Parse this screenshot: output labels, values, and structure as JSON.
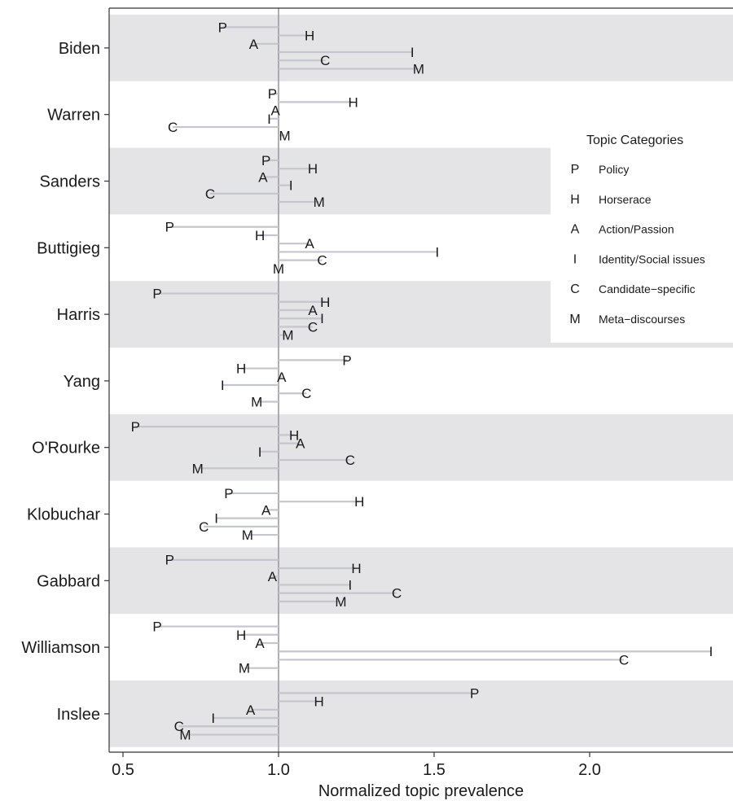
{
  "chart_data": {
    "type": "lollipop",
    "xlabel": "Normalized topic prevalence",
    "xlim": [
      0.45,
      2.45
    ],
    "xticks": [
      "0.5",
      "1.0",
      "1.5",
      "2.0"
    ],
    "baseline": 1.0,
    "shaded_bands": "alternating",
    "grid": false,
    "legend_position": "right",
    "legend": {
      "title": "Topic Categories",
      "items": [
        {
          "code": "P",
          "label": "Policy"
        },
        {
          "code": "H",
          "label": "Horserace"
        },
        {
          "code": "A",
          "label": "Action/Passion"
        },
        {
          "code": "I",
          "label": "Identity/Social issues"
        },
        {
          "code": "C",
          "label": "Candidate−specific"
        },
        {
          "code": "M",
          "label": "Meta−discourses"
        }
      ]
    },
    "series_order": [
      "P",
      "H",
      "A",
      "I",
      "C",
      "M"
    ],
    "candidates": [
      {
        "name": "Biden",
        "values": {
          "P": 0.82,
          "H": 1.1,
          "A": 0.92,
          "I": 1.43,
          "C": 1.15,
          "M": 1.45
        }
      },
      {
        "name": "Warren",
        "values": {
          "P": 0.98,
          "H": 1.24,
          "A": 0.99,
          "I": 0.97,
          "C": 0.66,
          "M": 1.02
        }
      },
      {
        "name": "Sanders",
        "values": {
          "P": 0.96,
          "H": 1.11,
          "A": 0.95,
          "I": 1.04,
          "C": 0.78,
          "M": 1.13
        }
      },
      {
        "name": "Buttigieg",
        "values": {
          "P": 0.65,
          "H": 0.94,
          "A": 1.1,
          "I": 1.51,
          "C": 1.14,
          "M": 1.0
        }
      },
      {
        "name": "Harris",
        "values": {
          "P": 0.61,
          "H": 1.15,
          "A": 1.11,
          "I": 1.14,
          "C": 1.11,
          "M": 1.03
        }
      },
      {
        "name": "Yang",
        "values": {
          "P": 1.22,
          "H": 0.88,
          "A": 1.01,
          "I": 0.82,
          "C": 1.09,
          "M": 0.93
        }
      },
      {
        "name": "O'Rourke",
        "values": {
          "P": 0.54,
          "H": 1.05,
          "A": 1.07,
          "I": 0.94,
          "C": 1.23,
          "M": 0.74
        }
      },
      {
        "name": "Klobuchar",
        "values": {
          "P": 0.84,
          "H": 1.26,
          "A": 0.96,
          "I": 0.8,
          "C": 0.76,
          "M": 0.9
        }
      },
      {
        "name": "Gabbard",
        "values": {
          "P": 0.65,
          "H": 1.25,
          "A": 0.98,
          "I": 1.23,
          "C": 1.38,
          "M": 1.2
        }
      },
      {
        "name": "Williamson",
        "values": {
          "P": 0.61,
          "H": 0.88,
          "A": 0.94,
          "I": 2.39,
          "C": 2.11,
          "M": 0.89
        }
      },
      {
        "name": "Inslee",
        "values": {
          "P": 1.63,
          "H": 1.13,
          "A": 0.91,
          "I": 0.79,
          "C": 0.68,
          "M": 0.7
        }
      }
    ],
    "colors": {
      "band": "#e4e4e7",
      "segment": "#c5c5cc",
      "baseline": "#9a9aa4",
      "text": "#1a1a1a"
    }
  }
}
